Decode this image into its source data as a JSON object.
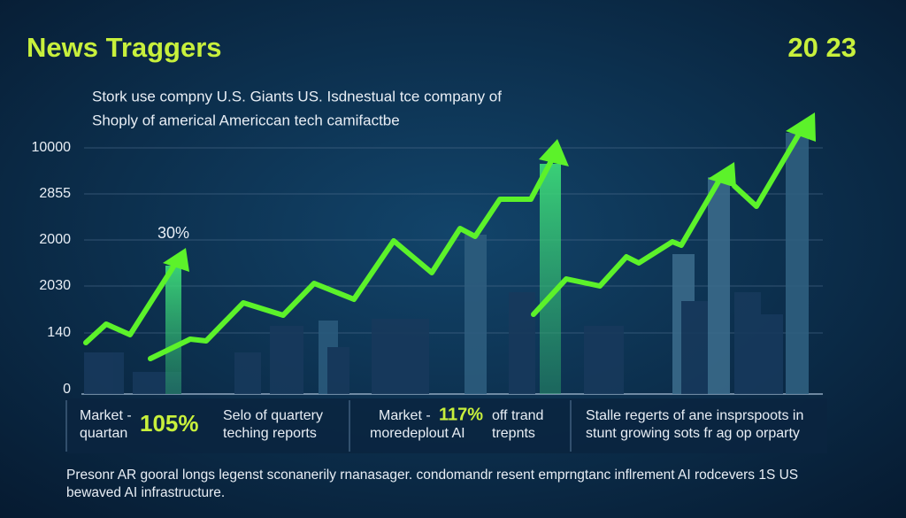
{
  "header": {
    "title": "News Traggers",
    "year": "20 23",
    "subtitle": [
      "Stork use compny U.S. Giants US. Isdnestual tce company of",
      "Shoply of americal Americcan tech camifactbe"
    ]
  },
  "axis_labels": [
    "10000",
    "2855",
    "2000",
    "2030",
    "140",
    "0"
  ],
  "annotation": "30%",
  "panels": [
    {
      "label": [
        "Market -",
        "quartan"
      ],
      "figure": "105%",
      "text": [
        "Selo of quartery",
        "teching reports"
      ]
    },
    {
      "label": [
        "Market -",
        "moredeplout AI"
      ],
      "figure": "117%",
      "text": [
        "off trand",
        "trepnts"
      ]
    },
    {
      "text": [
        "Stalle regerts of ane insprspoots in",
        "stunt growing sots fr ag op orparty"
      ]
    }
  ],
  "footer": [
    "Presonr AR gooral longs legenst sconanerily rnanasager. condomandr resent emprngtanc inflrement AI rodcevers 1S US",
    "bewaved AI infrastructure."
  ]
}
